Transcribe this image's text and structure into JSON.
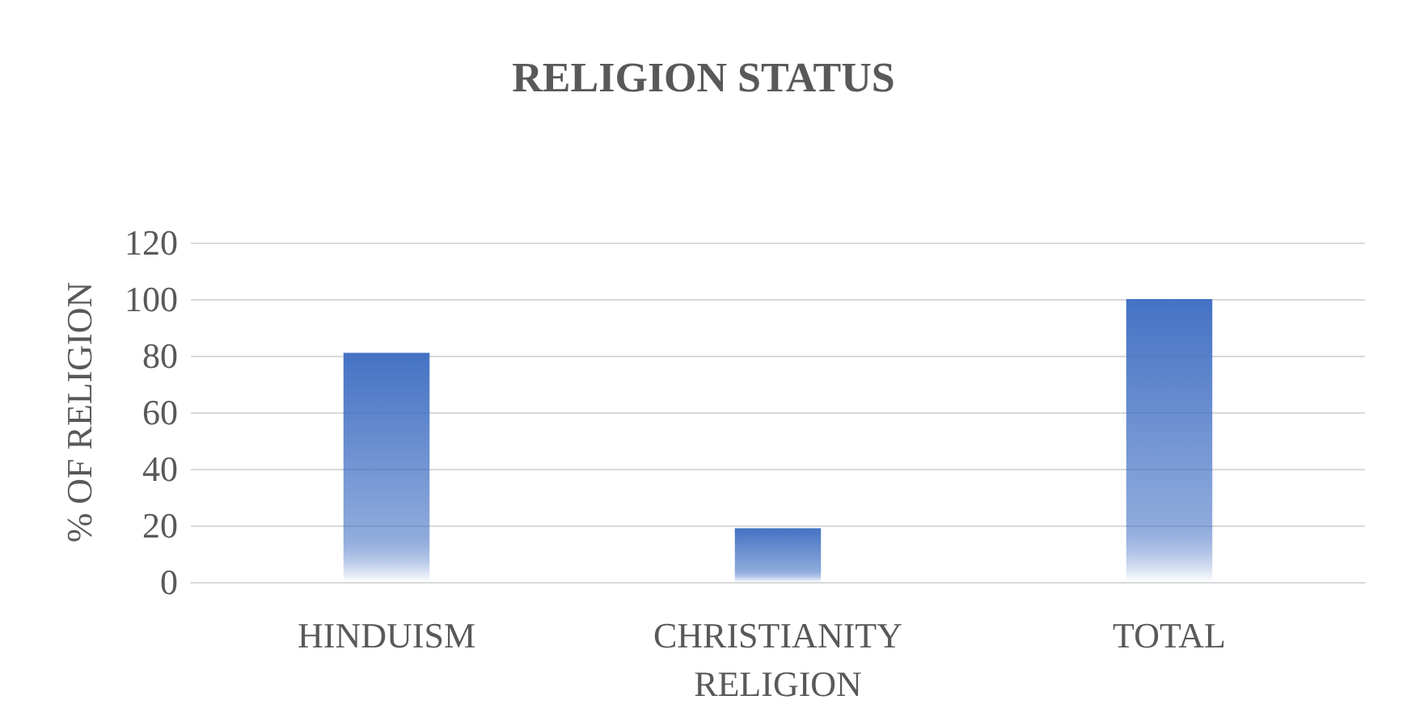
{
  "chart_data": {
    "type": "bar",
    "title": "RELIGION STATUS",
    "ylabel": "% OF RELIGION",
    "categories": [
      "HINDUISM",
      "CHRISTIANITY RELIGION",
      "TOTAL"
    ],
    "values": [
      81,
      19,
      100
    ],
    "color": "#4472c4",
    "ylim": [
      0,
      120
    ],
    "yticks": [
      0,
      20,
      40,
      60,
      80,
      100,
      120
    ],
    "grid": "y"
  }
}
